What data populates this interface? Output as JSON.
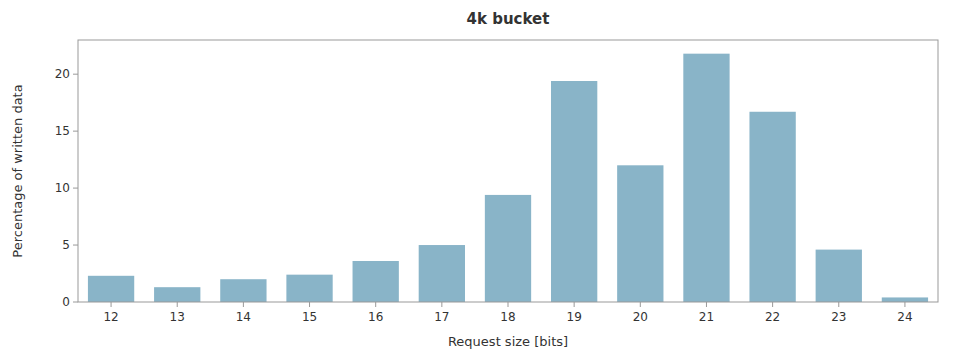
{
  "chart_data": {
    "type": "bar",
    "title": "4k bucket",
    "xlabel": "Request size [bits]",
    "ylabel": "Percentage of written data",
    "x": [
      12,
      13,
      14,
      15,
      16,
      17,
      18,
      19,
      20,
      21,
      22,
      23,
      24
    ],
    "values": [
      2.3,
      1.3,
      2.0,
      2.4,
      3.6,
      5.0,
      9.4,
      19.4,
      12.0,
      21.8,
      16.7,
      4.6,
      0.4
    ],
    "color": "#89b4c8",
    "xlim": [
      11.5,
      24.5
    ],
    "xticks": [
      12,
      13,
      14,
      15,
      16,
      17,
      18,
      19,
      20,
      21,
      22,
      23,
      24
    ],
    "ylim": [
      0,
      23
    ],
    "yticks": [
      0,
      5,
      10,
      15,
      20
    ],
    "grid": false
  }
}
